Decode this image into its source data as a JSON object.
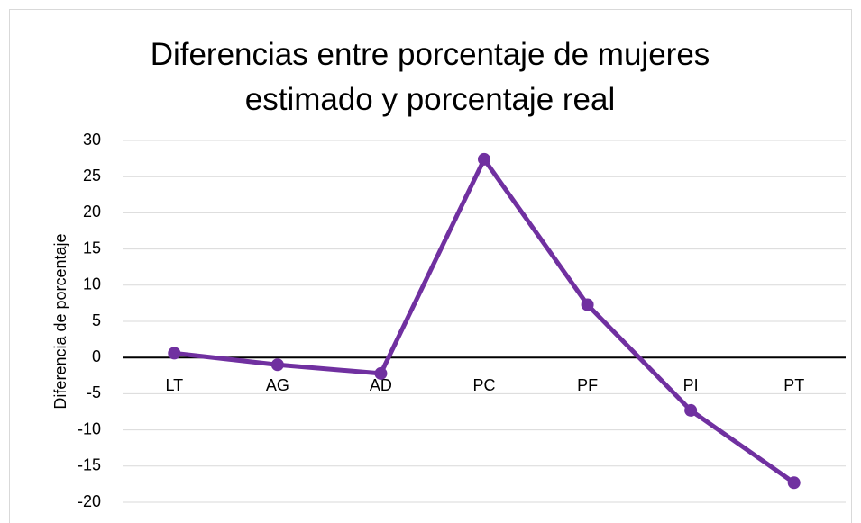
{
  "chart_data": {
    "type": "line",
    "title": "Diferencias entre porcentaje de mujeres estimado y porcentaje real",
    "y_label": "Diferencia de porcentaje",
    "categories": [
      "LT",
      "AG",
      "AD",
      "PC",
      "PF",
      "PI",
      "PT"
    ],
    "series": [
      {
        "name": "Diferencia",
        "color": "#7030a0",
        "values": [
          0.6,
          -1,
          -2.2,
          27.4,
          7.3,
          -7.3,
          -17.3
        ]
      }
    ],
    "ylim": [
      -20,
      30
    ],
    "yticks": [
      -20,
      -15,
      -10,
      -5,
      0,
      5,
      10,
      15,
      20,
      25,
      30
    ],
    "grid": true
  }
}
